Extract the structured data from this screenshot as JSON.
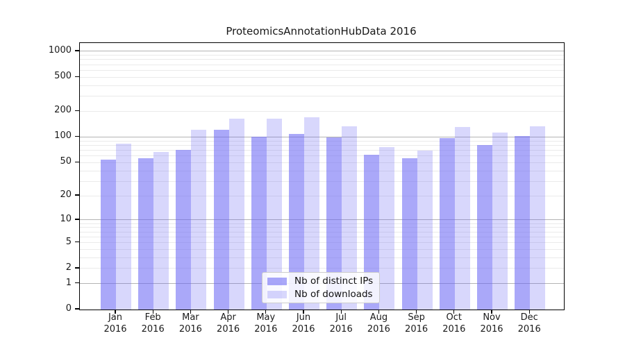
{
  "chart_data": {
    "type": "bar",
    "title": "ProteomicsAnnotationHubData 2016",
    "categories": [
      "Jan",
      "Feb",
      "Mar",
      "Apr",
      "May",
      "Jun",
      "Jul",
      "Aug",
      "Sep",
      "Oct",
      "Nov",
      "Dec"
    ],
    "year_label": "2016",
    "series": [
      {
        "name": "Nb of distinct IPs",
        "values": [
          54,
          56,
          71,
          121,
          101,
          108,
          99,
          62,
          56,
          97,
          80,
          103
        ],
        "color": "#a9a7f7",
        "fill": "rgba(103,100,244,0.56)"
      },
      {
        "name": "Nb of downloads",
        "values": [
          83,
          67,
          121,
          164,
          163,
          170,
          134,
          76,
          69,
          131,
          113,
          134
        ],
        "color": "#d9d7f7",
        "fill": "rgba(103,100,244,0.26)"
      }
    ],
    "y_ticks": [
      1000,
      500,
      200,
      100,
      50,
      20,
      10,
      5,
      2,
      1,
      0
    ],
    "y_scale": "log1p",
    "ylim": [
      0,
      1270
    ],
    "grid": {
      "major_values": [
        1,
        10,
        100,
        1000
      ],
      "major_color": "#b3b3b3",
      "minor_color": "#eaeaea"
    },
    "legend_position": "lower-center"
  }
}
